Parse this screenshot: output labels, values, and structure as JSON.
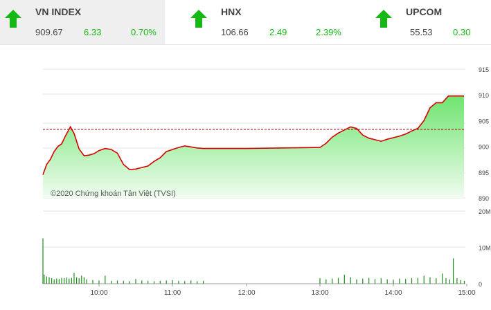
{
  "tickers": [
    {
      "name": "VN INDEX",
      "price": "909.67",
      "change": "6.33",
      "percent": "0.70%"
    },
    {
      "name": "HNX",
      "price": "106.66",
      "change": "2.49",
      "percent": "2.39%"
    },
    {
      "name": "UPCOM",
      "price": "55.53",
      "change": "0.30",
      "percent": ""
    }
  ],
  "colors": {
    "up": "#15b815",
    "line": "#d40000",
    "fill_top": "#7be87b",
    "fill_bottom": "#e8fbe8",
    "reference": "#a00000"
  },
  "chart_data": [
    {
      "type": "area",
      "series": [
        {
          "values_x": [
            "09:15",
            "09:18",
            "09:21",
            "09:24",
            "09:27",
            "09:30",
            "09:33",
            "09:37",
            "09:40",
            "09:44",
            "09:48",
            "09:52",
            "09:56",
            "10:00",
            "10:05",
            "10:10",
            "10:15",
            "10:20",
            "10:25",
            "10:30",
            "10:35",
            "10:40",
            "10:45",
            "10:50",
            "10:55",
            "11:00",
            "11:05",
            "11:10",
            "11:15",
            "11:20",
            "11:25",
            "11:30",
            "12:00",
            "12:30",
            "13:00",
            "13:05",
            "13:10",
            "13:15",
            "13:20",
            "13:25",
            "13:30",
            "13:35",
            "13:40",
            "13:45",
            "13:50",
            "13:55",
            "14:00",
            "14:05",
            "14:10",
            "14:15",
            "14:20",
            "14:25",
            "14:30",
            "14:35",
            "14:40",
            "14:45",
            "15:00"
          ],
          "values_y": [
            894.5,
            896.5,
            897.5,
            899,
            900,
            900.5,
            902,
            903.8,
            902.5,
            899.5,
            898.2,
            898.3,
            898.6,
            899.2,
            899.6,
            899.4,
            898.7,
            896.5,
            895.5,
            895.6,
            895.9,
            896.2,
            897.1,
            897.8,
            899.0,
            899.4,
            899.8,
            900.1,
            899.9,
            899.7,
            899.6,
            899.6,
            899.6,
            899.7,
            899.8,
            900.6,
            901.8,
            902.6,
            903.2,
            903.8,
            903.5,
            902.2,
            901.6,
            901.3,
            901.0,
            901.4,
            901.7,
            902.0,
            902.4,
            903.0,
            903.5,
            905.0,
            907.5,
            908.5,
            908.5,
            909.8,
            909.8
          ]
        }
      ],
      "yticks": [
        "915",
        "910",
        "905",
        "900",
        "895",
        "890"
      ],
      "ylim": [
        890,
        915
      ],
      "reference": 903.3,
      "annotation": "©2020 Chứng khoán Tân Việt (TVSI)"
    },
    {
      "type": "bar",
      "xticks": [
        "10:00",
        "11:00",
        "12:00",
        "13:00",
        "14:00",
        "15:00"
      ],
      "yticks": [
        "20M",
        "10M",
        "0"
      ],
      "ylim": [
        0,
        20000000
      ],
      "values_x": [
        "09:15",
        "09:16",
        "09:18",
        "09:20",
        "09:22",
        "09:24",
        "09:26",
        "09:28",
        "09:30",
        "09:32",
        "09:34",
        "09:36",
        "09:38",
        "09:40",
        "09:42",
        "09:44",
        "09:46",
        "09:48",
        "09:50",
        "09:55",
        "10:00",
        "10:05",
        "10:10",
        "10:15",
        "10:20",
        "10:25",
        "10:30",
        "10:35",
        "10:40",
        "10:45",
        "10:50",
        "10:55",
        "11:00",
        "11:05",
        "11:10",
        "11:15",
        "11:20",
        "11:25",
        "13:00",
        "13:05",
        "13:10",
        "13:15",
        "13:20",
        "13:25",
        "13:30",
        "13:35",
        "13:40",
        "13:45",
        "13:50",
        "13:55",
        "14:00",
        "14:05",
        "14:10",
        "14:15",
        "14:20",
        "14:25",
        "14:30",
        "14:35",
        "14:40",
        "14:43",
        "14:46",
        "14:49",
        "14:52",
        "14:55",
        "14:58"
      ],
      "values": [
        12500000,
        2500000,
        2000000,
        1800000,
        1500000,
        1200000,
        1400000,
        1300000,
        1600000,
        1500000,
        1700000,
        1400000,
        1600000,
        3000000,
        1800000,
        1500000,
        2200000,
        1800000,
        1200000,
        1000000,
        900000,
        2200000,
        800000,
        900000,
        800000,
        700000,
        1300000,
        900000,
        800000,
        700000,
        800000,
        900000,
        1000000,
        800000,
        700000,
        900000,
        700000,
        800000,
        1500000,
        1200000,
        1400000,
        1600000,
        2500000,
        1800000,
        1200000,
        1400000,
        1600000,
        1300000,
        1500000,
        1200000,
        1100000,
        1400000,
        1300000,
        1500000,
        1600000,
        2200000,
        1800000,
        1500000,
        2800000,
        1500000,
        1200000,
        7000000,
        1500000,
        1000000,
        800000
      ]
    }
  ]
}
